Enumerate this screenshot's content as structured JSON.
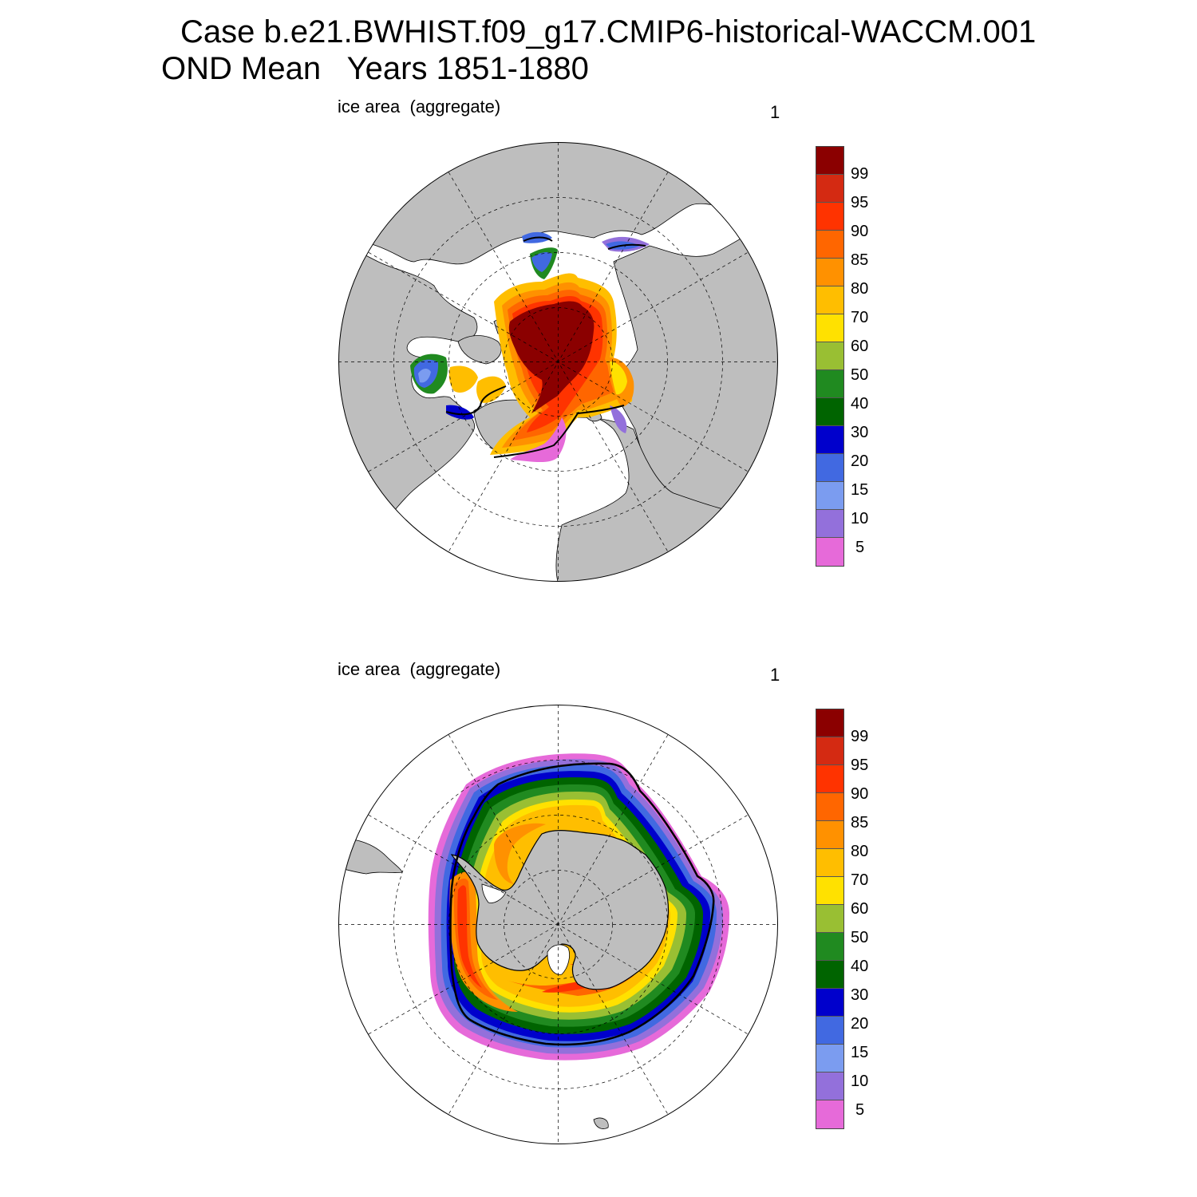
{
  "title_line1": "Case b.e21.BWHIST.f09_g17.CMIP6-historical-WACCM.001",
  "title_line2": "OND Mean   Years 1851-1880",
  "panels": [
    {
      "left_label": "ice area  (aggregate)",
      "right_label": "1",
      "hemisphere": "north"
    },
    {
      "left_label": "ice area  (aggregate)",
      "right_label": "1",
      "hemisphere": "south"
    }
  ],
  "legend": {
    "colors": [
      "#8b0000",
      "#d42a12",
      "#ff3300",
      "#ff6600",
      "#ff9100",
      "#ffbe00",
      "#ffe100",
      "#99bf33",
      "#208a20",
      "#006400",
      "#0000cc",
      "#4169e1",
      "#7b9cf0",
      "#9370db",
      "#e66ad9"
    ],
    "labels": [
      "99",
      "95",
      "90",
      "85",
      "80",
      "70",
      "60",
      "50",
      "40",
      "30",
      "20",
      "15",
      "10",
      "5"
    ]
  },
  "colors": {
    "land": "#bebebe",
    "ocean": "#ffffff"
  }
}
